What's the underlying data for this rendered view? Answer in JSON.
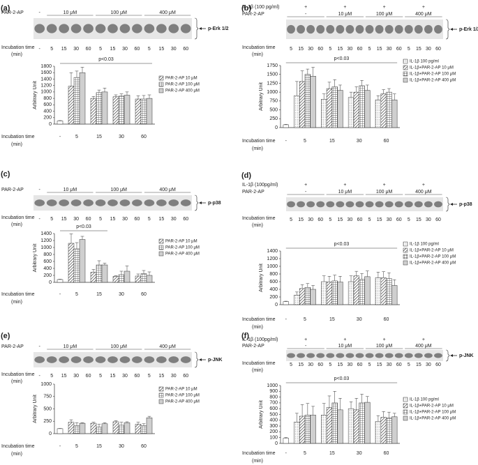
{
  "chart_data": [
    {
      "type": "bar",
      "panel": "(a)",
      "blot": {
        "rows": [
          {
            "label": "PAR-2-AP",
            "groups": [
              "-",
              "10 μM",
              "100 μM",
              "400 μM"
            ]
          }
        ],
        "band_label": "p-Erk 1/2",
        "time_label": [
          "Incubation time",
          "(min)"
        ],
        "lanes": [
          "-",
          "5",
          "15",
          "30",
          "60",
          "5",
          "15",
          "30",
          "60",
          "5",
          "15",
          "30",
          "60"
        ]
      },
      "ylabel": "Arbitrary Unit",
      "annotation": "p<0.03",
      "xlabel": [
        "Incubation time",
        "(min)"
      ],
      "categories": [
        "-",
        "5",
        "15",
        "30",
        "60"
      ],
      "control": {
        "value": 100,
        "error": 10
      },
      "series": [
        {
          "name": "PAR-2-AP 10 μM",
          "pattern": "diagonal",
          "values": [
            null,
            1180,
            800,
            850,
            780
          ],
          "errors": [
            null,
            420,
            60,
            60,
            100
          ]
        },
        {
          "name": "PAR-2-AP 100 μM",
          "pattern": "cross",
          "values": [
            null,
            1450,
            980,
            870,
            780
          ],
          "errors": [
            null,
            200,
            80,
            70,
            110
          ]
        },
        {
          "name": "PAR-2-AP 400 μM",
          "pattern": "gray",
          "values": [
            null,
            1600,
            1000,
            900,
            800
          ],
          "errors": [
            null,
            170,
            120,
            100,
            110
          ]
        }
      ],
      "ylim": [
        0,
        1800
      ],
      "yticks": [
        0,
        200,
        400,
        600,
        800,
        1000,
        1200,
        1400,
        1600,
        1800
      ]
    },
    {
      "type": "bar",
      "panel": "(b)",
      "blot": {
        "rows": [
          {
            "label": "IL-1β (100 pg/ml)",
            "groups": [
              "+",
              "+",
              "+",
              "+"
            ]
          },
          {
            "label": "PAR-2-AP",
            "groups": [
              "-",
              "10 μM",
              "100 μM",
              "400 μM"
            ]
          }
        ],
        "band_label": "p-Erk 1/2",
        "time_label": [
          "Incubation time",
          "(min)"
        ],
        "lanes": [
          "5",
          "15",
          "30",
          "60",
          "5",
          "15",
          "30",
          "60",
          "5",
          "15",
          "30",
          "60",
          "5",
          "15",
          "30",
          "60"
        ]
      },
      "ylabel": "Arbitrary Unit",
      "annotation": "p<0.03",
      "xlabel": [
        "Incubation time",
        "(min)"
      ],
      "categories": [
        "-",
        "5",
        "15",
        "30",
        "60"
      ],
      "control": {
        "value": 80,
        "error": 10
      },
      "series": [
        {
          "name": "IL-1β 100 pg/ml",
          "pattern": "dotted",
          "values": [
            null,
            900,
            800,
            850,
            780
          ],
          "errors": [
            null,
            400,
            150,
            150,
            120
          ]
        },
        {
          "name": "IL-1β+PAR-2-AP 10 μM",
          "pattern": "diagonal",
          "values": [
            null,
            1300,
            1100,
            1000,
            950
          ],
          "errors": [
            null,
            300,
            180,
            150,
            120
          ]
        },
        {
          "name": "IL-1β+PAR-2-AP 100 μM",
          "pattern": "cross",
          "values": [
            null,
            1500,
            1150,
            1180,
            1000
          ],
          "errors": [
            null,
            150,
            200,
            150,
            100
          ]
        },
        {
          "name": "IL-1β+PAR-2-AP 400 μM",
          "pattern": "gray",
          "values": [
            null,
            1450,
            1050,
            1050,
            780
          ],
          "errors": [
            null,
            250,
            150,
            150,
            170
          ]
        }
      ],
      "ylim": [
        0,
        1750
      ],
      "yticks": [
        0,
        250,
        500,
        750,
        1000,
        1250,
        1500,
        1750
      ]
    },
    {
      "type": "bar",
      "panel": "(c)",
      "blot": {
        "rows": [
          {
            "label": "PAR-2-AP",
            "groups": [
              "-",
              "10 μM",
              "100 μM",
              "400 μM"
            ]
          }
        ],
        "band_label": "p-p38",
        "time_label": [
          "Incubation time",
          "(min)"
        ],
        "lanes": [
          "-",
          "5",
          "15",
          "30",
          "60",
          "5",
          "15",
          "30",
          "60",
          "5",
          "15",
          "30",
          "60"
        ]
      },
      "ylabel": "Arbitrary Unit",
      "annotation": "p<0.03",
      "xlabel": [
        "Incubation time",
        "(min)"
      ],
      "categories": [
        "-",
        "5",
        "15",
        "30",
        "60"
      ],
      "control": {
        "value": 80,
        "error": 10
      },
      "series": [
        {
          "name": "PAR-2-AP 10 μM",
          "pattern": "diagonal",
          "values": [
            null,
            1120,
            290,
            170,
            180
          ],
          "errors": [
            null,
            270,
            80,
            20,
            60
          ]
        },
        {
          "name": "PAR-2-AP 100 μM",
          "pattern": "cross",
          "values": [
            null,
            960,
            500,
            220,
            250
          ],
          "errors": [
            null,
            180,
            120,
            100,
            90
          ]
        },
        {
          "name": "PAR-2-AP 400 μM",
          "pattern": "gray",
          "values": [
            null,
            1230,
            500,
            320,
            200
          ],
          "errors": [
            null,
            90,
            50,
            150,
            100
          ]
        }
      ],
      "ylim": [
        0,
        1400
      ],
      "yticks": [
        0,
        200,
        400,
        600,
        800,
        1000,
        1200,
        1400
      ]
    },
    {
      "type": "bar",
      "panel": "(d)",
      "blot": {
        "rows": [
          {
            "label": "IL-1β (100pg/ml)",
            "groups": [
              "+",
              "+",
              "+",
              "+"
            ]
          },
          {
            "label": "PAR-2-AP",
            "groups": [
              "-",
              "10 μM",
              "100 μM",
              "400 μM"
            ]
          }
        ],
        "band_label": "p-p38",
        "time_label": [
          "Incubation time",
          "(min)"
        ],
        "lanes": [
          "5",
          "15",
          "30",
          "60",
          "5",
          "15",
          "30",
          "60",
          "5",
          "15",
          "30",
          "60",
          "5",
          "15",
          "30",
          "60"
        ]
      },
      "ylabel": "Arbitrary Unit",
      "annotation": "p<0.03",
      "xlabel": [
        "Incubation time",
        "(min)"
      ],
      "categories": [
        "-",
        "5",
        "15",
        "30",
        "60"
      ],
      "control": {
        "value": 80,
        "error": 10
      },
      "series": [
        {
          "name": "IL-1β 100 pg/ml",
          "pattern": "dotted",
          "values": [
            null,
            250,
            600,
            600,
            700
          ],
          "errors": [
            null,
            80,
            150,
            150,
            150
          ]
        },
        {
          "name": "IL-1β+PAR-2-AP 10 μM",
          "pattern": "diagonal",
          "values": [
            null,
            420,
            590,
            750,
            700
          ],
          "errors": [
            null,
            100,
            150,
            120,
            160
          ]
        },
        {
          "name": "IL-1β+PAR-2-AP 100 μM",
          "pattern": "cross",
          "values": [
            null,
            450,
            620,
            660,
            680
          ],
          "errors": [
            null,
            100,
            150,
            150,
            150
          ]
        },
        {
          "name": "IL-1β+PAR-2-AP 400 μM",
          "pattern": "gray",
          "values": [
            null,
            400,
            590,
            730,
            500
          ],
          "errors": [
            null,
            100,
            150,
            150,
            150
          ]
        }
      ],
      "ylim": [
        0,
        1400
      ],
      "yticks": [
        0,
        200,
        400,
        600,
        800,
        1000,
        1200,
        1400
      ]
    },
    {
      "type": "bar",
      "panel": "(e)",
      "blot": {
        "rows": [
          {
            "label": "PAR-2-AP",
            "groups": [
              "-",
              "10 μM",
              "100 μM",
              "400 μM"
            ]
          }
        ],
        "band_label": "p-JNK",
        "time_label": [
          "Incubation time",
          "(min)"
        ],
        "lanes": [
          "-",
          "5",
          "15",
          "30",
          "60",
          "5",
          "15",
          "30",
          "60",
          "5",
          "15",
          "30",
          "60"
        ]
      },
      "ylabel": "Arbitrary Unit",
      "xlabel": [
        "Incubation time",
        "(min)"
      ],
      "categories": [
        "-",
        "5",
        "15",
        "30",
        "60"
      ],
      "control": {
        "value": 100,
        "error": 5
      },
      "series": [
        {
          "name": "PAR-2-AP 10 μM",
          "pattern": "diagonal",
          "values": [
            null,
            230,
            210,
            240,
            190
          ],
          "errors": [
            null,
            50,
            20,
            20,
            40
          ]
        },
        {
          "name": "PAR-2-AP 100 μM",
          "pattern": "cross",
          "values": [
            null,
            160,
            130,
            170,
            160
          ],
          "errors": [
            null,
            60,
            60,
            60,
            40
          ]
        },
        {
          "name": "PAR-2-AP 400 μM",
          "pattern": "gray",
          "values": [
            null,
            210,
            200,
            220,
            320
          ],
          "errors": [
            null,
            10,
            20,
            20,
            30
          ]
        }
      ],
      "ylim": [
        0,
        1000
      ],
      "yticks": [
        0,
        250,
        500,
        750,
        1000
      ]
    },
    {
      "type": "bar",
      "panel": "(f)",
      "blot": {
        "rows": [
          {
            "label": "IL-1β (100pg/ml)",
            "groups": [
              "+",
              "+",
              "+",
              "+"
            ]
          },
          {
            "label": "PAR-2-AP",
            "groups": [
              "-",
              "10 μM",
              "100 μM",
              "400 μM"
            ]
          }
        ],
        "band_label": "p-JNK",
        "time_label": [
          "Incubation time",
          "(min)"
        ],
        "lanes": [
          "5",
          "15",
          "30",
          "60",
          "5",
          "15",
          "30",
          "60",
          "5",
          "15",
          "30",
          "60",
          "5",
          "15",
          "30",
          "60"
        ]
      },
      "ylabel": "Arbitrary Unit",
      "annotation": "p<0.03",
      "xlabel": [
        "Incubation time",
        "(min)"
      ],
      "categories": [
        "-",
        "5",
        "15",
        "30",
        "60"
      ],
      "control": {
        "value": 90,
        "error": 10
      },
      "series": [
        {
          "name": "IL-1β 100 pg/ml",
          "pattern": "dotted",
          "values": [
            null,
            370,
            490,
            600,
            380
          ],
          "errors": [
            null,
            150,
            200,
            120,
            100
          ]
        },
        {
          "name": "IL-1β+PAR-2-AP 10 μM",
          "pattern": "diagonal",
          "values": [
            null,
            470,
            620,
            580,
            450
          ],
          "errors": [
            null,
            200,
            200,
            200,
            100
          ]
        },
        {
          "name": "IL-1β+PAR-2-AP 100 μM",
          "pattern": "cross",
          "values": [
            null,
            490,
            700,
            700,
            440
          ],
          "errors": [
            null,
            200,
            200,
            150,
            100
          ]
        },
        {
          "name": "IL-1β+PAR-2-AP 400 μM",
          "pattern": "gray",
          "values": [
            null,
            490,
            580,
            710,
            460
          ],
          "errors": [
            null,
            150,
            200,
            100,
            60
          ]
        }
      ],
      "ylim": [
        0,
        1000
      ],
      "yticks": [
        0,
        100,
        200,
        300,
        400,
        500,
        600,
        700,
        800,
        900,
        1000
      ]
    }
  ]
}
